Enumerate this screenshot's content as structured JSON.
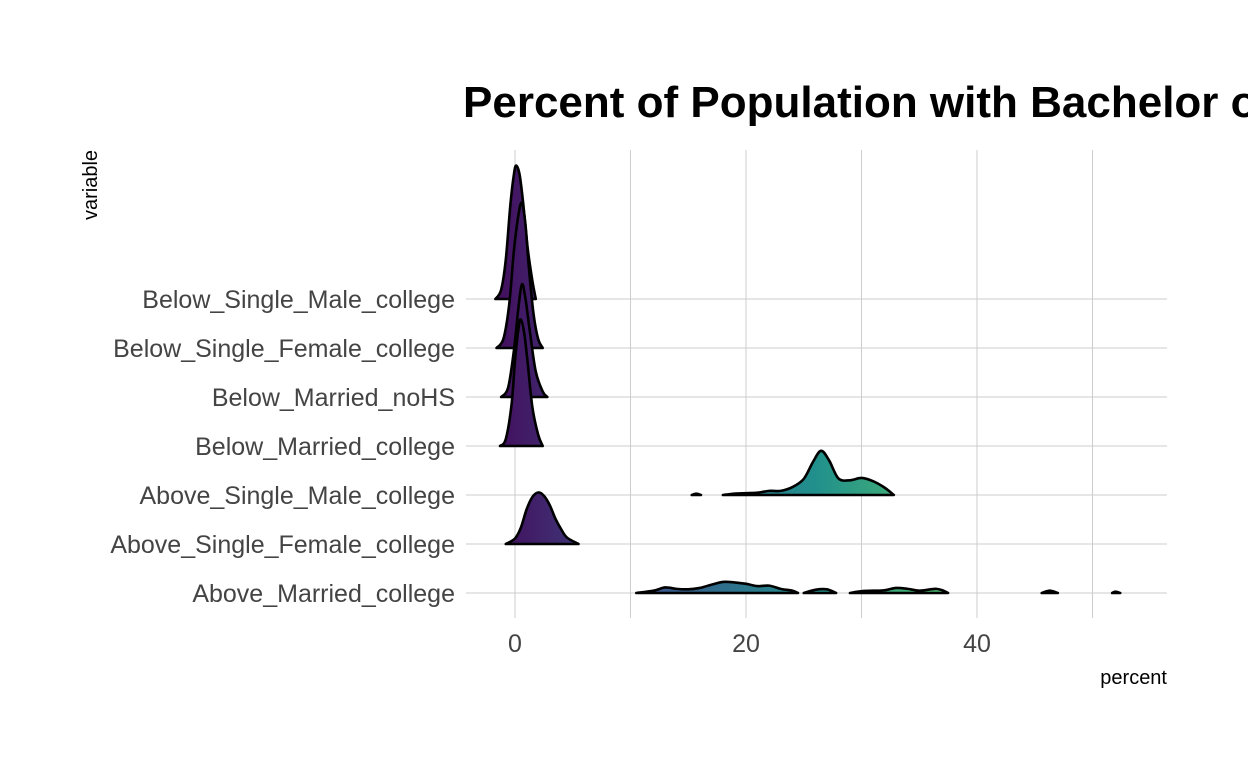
{
  "chart_data": {
    "type": "ridgeline",
    "title": "Percent of Population with Bachelor or Hig",
    "xlabel": "percent",
    "ylabel": "variable",
    "xlim": [
      -4,
      56
    ],
    "x_ticks": [
      0,
      20,
      40
    ],
    "grid": true,
    "legend": "none",
    "categories": [
      "Above_Married_college",
      "Above_Single_Female_college",
      "Above_Single_Male_college",
      "Below_Married_college",
      "Below_Married_noHS",
      "Below_Single_Female_college",
      "Below_Single_Male_college"
    ],
    "series": [
      {
        "category": "Above_Married_college",
        "segments": [
          [
            [
              10.5,
              0
            ],
            [
              12,
              0.05
            ],
            [
              13,
              0.12
            ],
            [
              14,
              0.09
            ],
            [
              15,
              0.08
            ],
            [
              16,
              0.11
            ],
            [
              17,
              0.18
            ],
            [
              18,
              0.24
            ],
            [
              19,
              0.23
            ],
            [
              20,
              0.2
            ],
            [
              21,
              0.15
            ],
            [
              22,
              0.16
            ],
            [
              23,
              0.09
            ],
            [
              24,
              0.05
            ],
            [
              24.5,
              0
            ]
          ],
          [
            [
              25,
              0
            ],
            [
              26,
              0.07
            ],
            [
              27,
              0.08
            ],
            [
              27.8,
              0
            ]
          ],
          [
            [
              29,
              0
            ],
            [
              30,
              0.04
            ],
            [
              31,
              0.05
            ],
            [
              32,
              0.06
            ],
            [
              33,
              0.11
            ],
            [
              34,
              0.09
            ],
            [
              35,
              0.05
            ],
            [
              36,
              0.08
            ],
            [
              36.5,
              0.09
            ],
            [
              37,
              0.06
            ],
            [
              37.5,
              0
            ]
          ],
          [
            [
              45.6,
              0
            ],
            [
              46.3,
              0.05
            ],
            [
              47,
              0
            ]
          ],
          [
            [
              51.7,
              0
            ],
            [
              52,
              0.03
            ],
            [
              52.4,
              0
            ]
          ]
        ]
      },
      {
        "category": "Above_Single_Female_college",
        "segments": [
          [
            [
              -0.8,
              0
            ],
            [
              0,
              0.12
            ],
            [
              0.5,
              0.35
            ],
            [
              1,
              0.75
            ],
            [
              1.5,
              1.02
            ],
            [
              2,
              1.12
            ],
            [
              2.5,
              1.05
            ],
            [
              3,
              0.85
            ],
            [
              3.5,
              0.55
            ],
            [
              4,
              0.32
            ],
            [
              4.5,
              0.14
            ],
            [
              5.5,
              0
            ]
          ]
        ]
      },
      {
        "category": "Above_Single_Male_college",
        "segments": [
          [
            [
              15.3,
              0
            ],
            [
              15.7,
              0.03
            ],
            [
              16.1,
              0
            ]
          ],
          [
            [
              18,
              0
            ],
            [
              19,
              0.03
            ],
            [
              20,
              0.04
            ],
            [
              21,
              0.05
            ],
            [
              22,
              0.09
            ],
            [
              23,
              0.09
            ],
            [
              24,
              0.17
            ],
            [
              25,
              0.35
            ],
            [
              25.8,
              0.72
            ],
            [
              26.5,
              0.96
            ],
            [
              27.2,
              0.75
            ],
            [
              28,
              0.36
            ],
            [
              29,
              0.32
            ],
            [
              30,
              0.37
            ],
            [
              31,
              0.3
            ],
            [
              32,
              0.16
            ],
            [
              32.8,
              0
            ]
          ]
        ]
      },
      {
        "category": "Below_Married_college",
        "segments": [
          [
            [
              -1.3,
              0
            ],
            [
              -0.8,
              0.15
            ],
            [
              -0.3,
              0.9
            ],
            [
              0,
              1.85
            ],
            [
              0.3,
              2.55
            ],
            [
              0.5,
              2.75
            ],
            [
              0.8,
              2.45
            ],
            [
              1.1,
              1.8
            ],
            [
              1.5,
              0.85
            ],
            [
              2,
              0.25
            ],
            [
              2.4,
              0
            ]
          ]
        ]
      },
      {
        "category": "Below_Married_noHS",
        "segments": [
          [
            [
              -1.2,
              0
            ],
            [
              -0.6,
              0.2
            ],
            [
              -0.1,
              1.0
            ],
            [
              0.3,
              1.95
            ],
            [
              0.6,
              2.45
            ],
            [
              0.9,
              2.15
            ],
            [
              1.3,
              1.4
            ],
            [
              1.8,
              0.55
            ],
            [
              2.4,
              0.12
            ],
            [
              2.8,
              0
            ]
          ]
        ]
      },
      {
        "category": "Below_Single_Female_college",
        "segments": [
          [
            [
              -1.6,
              0
            ],
            [
              -1,
              0.2
            ],
            [
              -0.5,
              0.95
            ],
            [
              -0.1,
              2.1
            ],
            [
              0.3,
              2.9
            ],
            [
              0.6,
              3.15
            ],
            [
              0.9,
              2.7
            ],
            [
              1.2,
              1.75
            ],
            [
              1.6,
              0.75
            ],
            [
              2,
              0.2
            ],
            [
              2.4,
              0
            ]
          ]
        ]
      },
      {
        "category": "Below_Single_Male_college",
        "segments": [
          [
            [
              -1.7,
              0
            ],
            [
              -1.2,
              0.2
            ],
            [
              -0.8,
              0.85
            ],
            [
              -0.4,
              2.05
            ],
            [
              -0.1,
              2.7
            ],
            [
              0.1,
              2.9
            ],
            [
              0.4,
              2.7
            ],
            [
              0.7,
              2.1
            ],
            [
              1.1,
              1.1
            ],
            [
              1.5,
              0.4
            ],
            [
              1.8,
              0
            ]
          ]
        ]
      }
    ]
  },
  "colors": {
    "viridis_low": "#440154",
    "viridis_mid1": "#3b528b",
    "viridis_mid2": "#21908c",
    "viridis_mid3": "#5ec962",
    "viridis_high": "#fde725",
    "grid": "#cccccc",
    "outline": "#000000"
  }
}
